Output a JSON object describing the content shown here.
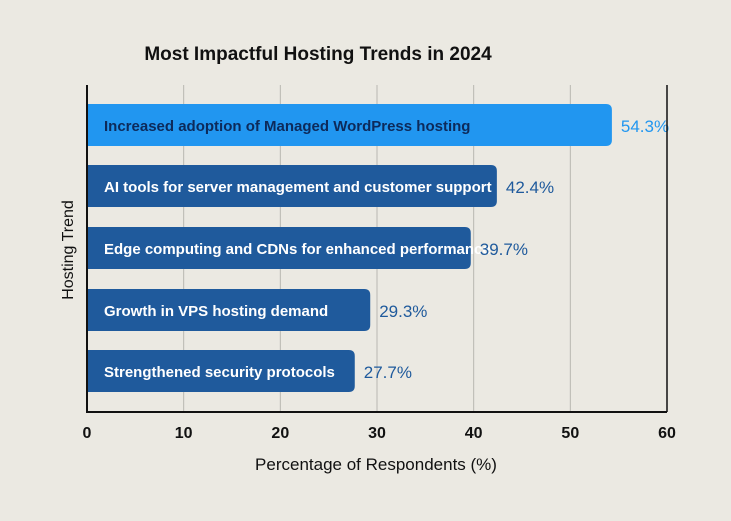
{
  "chart_data": {
    "type": "bar",
    "orientation": "horizontal",
    "title": "Most Impactful Hosting Trends in 2024",
    "xlabel": "Percentage of Respondents (%)",
    "ylabel": "Hosting Trend",
    "xlim": [
      0,
      60
    ],
    "xticks": [
      "0",
      "10",
      "20",
      "30",
      "40",
      "50",
      "60"
    ],
    "grid": true,
    "categories": [
      "Increased adoption of Managed WordPress hosting",
      "AI tools for server management and customer support",
      "Edge computing and CDNs for enhanced performance",
      "Growth in VPS hosting demand",
      "Strengthened security protocols"
    ],
    "values": [
      54.3,
      42.4,
      39.7,
      29.3,
      27.7
    ],
    "value_labels": [
      "54.3%",
      "42.4%",
      "39.7%",
      "29.3%",
      "27.7%"
    ],
    "highlight_index": 0,
    "colors": {
      "background": "#ebe9e2",
      "highlight_bar": "#2196f0",
      "bar": "#1f5a9c",
      "highlight_text": "#0d2a5a",
      "bar_text": "#ffffff",
      "highlight_value": "#2196f0",
      "value": "#1f5a9c"
    }
  }
}
